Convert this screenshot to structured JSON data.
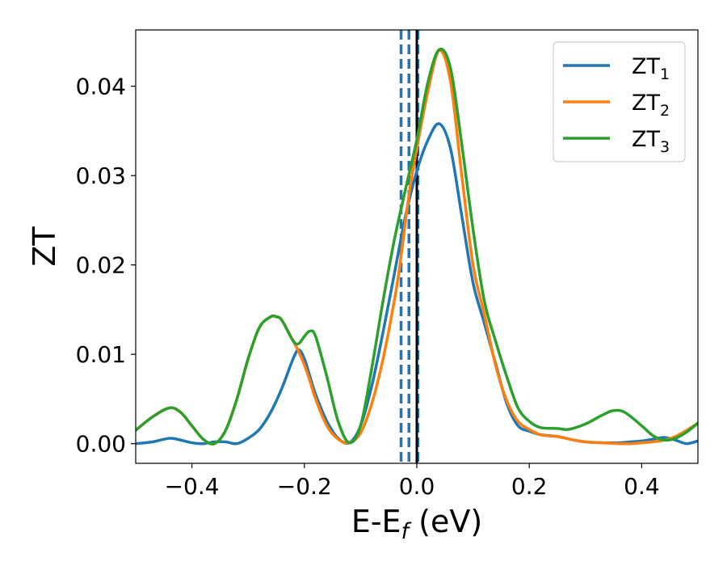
{
  "chart_data": {
    "type": "line",
    "title": "",
    "xlabel": "E-E",
    "xlabel_sub": "f",
    "xlabel_unit": " (eV)",
    "ylabel": "ZT",
    "xlim": [
      -0.5,
      0.5
    ],
    "ylim": [
      -0.0022,
      0.0463
    ],
    "xticks": [
      -0.4,
      -0.2,
      0.0,
      0.2,
      0.4
    ],
    "xtick_labels": [
      "−0.4",
      "−0.2",
      "0.0",
      "0.2",
      "0.4"
    ],
    "yticks": [
      0.0,
      0.01,
      0.02,
      0.03,
      0.04
    ],
    "ytick_labels": [
      "0.00",
      "0.01",
      "0.02",
      "0.03",
      "0.04"
    ],
    "grid": false,
    "legend_position": "top-right",
    "vertical_lines": [
      {
        "x": -0.028,
        "style": "dashed",
        "color": "#1f77b4"
      },
      {
        "x": -0.014,
        "style": "dashed",
        "color": "#1f77b4"
      },
      {
        "x": 0.002,
        "style": "dashed",
        "color": "#1f77b4"
      },
      {
        "x": 0.0,
        "style": "solid",
        "color": "#000000"
      }
    ],
    "series": [
      {
        "label_main": "ZT",
        "label_sub": "1",
        "color": "#1f77b4",
        "x": [
          -0.5,
          -0.47,
          -0.44,
          -0.42,
          -0.4,
          -0.38,
          -0.36,
          -0.34,
          -0.32,
          -0.3,
          -0.28,
          -0.26,
          -0.24,
          -0.22,
          -0.21,
          -0.2,
          -0.19,
          -0.18,
          -0.16,
          -0.14,
          -0.12,
          -0.1,
          -0.08,
          -0.06,
          -0.04,
          -0.02,
          0.0,
          0.02,
          0.04,
          0.06,
          0.08,
          0.1,
          0.12,
          0.14,
          0.16,
          0.18,
          0.2,
          0.22,
          0.25,
          0.28,
          0.3,
          0.33,
          0.36,
          0.38,
          0.4,
          0.42,
          0.44,
          0.46,
          0.48,
          0.5
        ],
        "y": [
          0.0,
          0.0002,
          0.0006,
          0.0004,
          0.0001,
          0.0,
          0.0002,
          0.0002,
          0.0,
          0.0006,
          0.0016,
          0.0035,
          0.0062,
          0.0095,
          0.0105,
          0.0095,
          0.0075,
          0.0055,
          0.0025,
          0.0006,
          0.0001,
          0.002,
          0.0065,
          0.0125,
          0.019,
          0.0255,
          0.0305,
          0.034,
          0.0358,
          0.033,
          0.0255,
          0.018,
          0.0135,
          0.009,
          0.0045,
          0.002,
          0.0014,
          0.001,
          0.0008,
          0.0004,
          0.0002,
          0.0001,
          0.0001,
          0.0002,
          0.0003,
          0.0005,
          0.0007,
          0.0004,
          0.0,
          0.0003
        ]
      },
      {
        "label_main": "ZT",
        "label_sub": "2",
        "color": "#ff7f0e",
        "x": [
          -0.5,
          -0.47,
          -0.44,
          -0.42,
          -0.4,
          -0.38,
          -0.36,
          -0.34,
          -0.32,
          -0.3,
          -0.28,
          -0.26,
          -0.25,
          -0.24,
          -0.22,
          -0.21,
          -0.2,
          -0.19,
          -0.18,
          -0.16,
          -0.14,
          -0.12,
          -0.1,
          -0.08,
          -0.06,
          -0.04,
          -0.03,
          -0.02,
          -0.015,
          -0.01,
          0.0,
          0.02,
          0.04,
          0.06,
          0.08,
          0.1,
          0.12,
          0.14,
          0.16,
          0.18,
          0.2,
          0.22,
          0.25,
          0.28,
          0.3,
          0.33,
          0.36,
          0.38,
          0.4,
          0.42,
          0.44,
          0.46,
          0.48,
          0.5
        ],
        "y": [
          0.0015,
          0.003,
          0.004,
          0.0035,
          0.002,
          0.0005,
          0.0,
          0.0015,
          0.005,
          0.0095,
          0.013,
          0.0142,
          0.0142,
          0.0138,
          0.0115,
          0.0103,
          0.0088,
          0.007,
          0.005,
          0.002,
          0.0005,
          0.0001,
          0.0012,
          0.0045,
          0.0095,
          0.016,
          0.02,
          0.025,
          0.0273,
          0.0295,
          0.033,
          0.0395,
          0.044,
          0.0405,
          0.03,
          0.02,
          0.0145,
          0.0088,
          0.0048,
          0.0025,
          0.0016,
          0.001,
          0.0008,
          0.0004,
          0.0002,
          0.0001,
          0.0,
          0.0,
          0.0001,
          0.0002,
          0.0004,
          0.0008,
          0.0015,
          0.0023
        ]
      },
      {
        "label_main": "ZT",
        "label_sub": "3",
        "color": "#2ca02c",
        "x": [
          -0.5,
          -0.47,
          -0.44,
          -0.42,
          -0.4,
          -0.38,
          -0.36,
          -0.34,
          -0.32,
          -0.3,
          -0.28,
          -0.26,
          -0.25,
          -0.24,
          -0.22,
          -0.21,
          -0.2,
          -0.19,
          -0.18,
          -0.16,
          -0.14,
          -0.12,
          -0.1,
          -0.08,
          -0.06,
          -0.04,
          -0.02,
          0.0,
          0.02,
          0.04,
          0.06,
          0.08,
          0.1,
          0.12,
          0.14,
          0.16,
          0.18,
          0.2,
          0.22,
          0.25,
          0.27,
          0.3,
          0.33,
          0.35,
          0.37,
          0.4,
          0.42,
          0.44,
          0.46,
          0.48,
          0.5
        ],
        "y": [
          0.0015,
          0.003,
          0.004,
          0.0035,
          0.002,
          0.0005,
          0.0,
          0.0015,
          0.005,
          0.0095,
          0.013,
          0.0142,
          0.0142,
          0.0138,
          0.0115,
          0.0112,
          0.012,
          0.0126,
          0.012,
          0.0075,
          0.0025,
          0.0001,
          0.002,
          0.0085,
          0.016,
          0.0228,
          0.0285,
          0.034,
          0.0405,
          0.0441,
          0.042,
          0.0335,
          0.024,
          0.016,
          0.0115,
          0.0075,
          0.004,
          0.0025,
          0.0018,
          0.0017,
          0.0016,
          0.0022,
          0.0032,
          0.0037,
          0.0035,
          0.002,
          0.0009,
          0.0004,
          0.0006,
          0.0013,
          0.0023
        ]
      }
    ]
  }
}
